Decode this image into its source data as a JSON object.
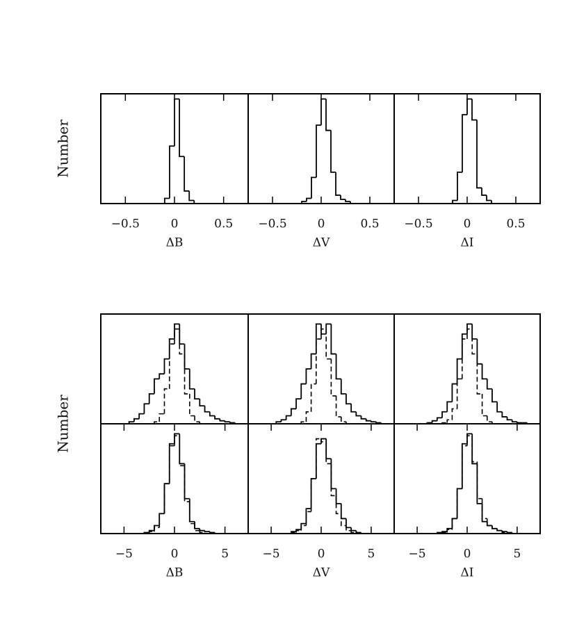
{
  "chart_data": [
    {
      "type": "histogram",
      "xlabel": "ΔB",
      "ylabel": "Number",
      "bins": [
        -0.75,
        -0.7,
        -0.65,
        -0.6,
        -0.55,
        -0.5,
        -0.45,
        -0.4,
        -0.35,
        -0.3,
        -0.25,
        -0.2,
        -0.15,
        -0.1,
        -0.05,
        0,
        0.05,
        0.1,
        0.15,
        0.2,
        0.25,
        0.3,
        0.35,
        0.4,
        0.45,
        0.5,
        0.55,
        0.6,
        0.65,
        0.7,
        0.75
      ],
      "series": [
        {
          "color": "#000000",
          "dashed": false,
          "values": [
            0,
            0,
            0,
            0,
            0,
            0,
            0,
            0,
            0,
            0,
            0,
            0,
            0,
            0.05,
            0.55,
            1.0,
            0.45,
            0.12,
            0.03,
            0,
            0,
            0,
            0,
            0,
            0,
            0,
            0,
            0,
            0,
            0
          ]
        }
      ],
      "xlim": [
        -0.75,
        0.75
      ],
      "ylim": [
        0,
        1.05
      ],
      "xticks": [
        {
          "value": -0.5,
          "label": "−0.5"
        },
        0,
        0.5
      ]
    },
    {
      "type": "histogram",
      "xlabel": "ΔV",
      "bins": [
        -0.75,
        -0.7,
        -0.65,
        -0.6,
        -0.55,
        -0.5,
        -0.45,
        -0.4,
        -0.35,
        -0.3,
        -0.25,
        -0.2,
        -0.15,
        -0.1,
        -0.05,
        0,
        0.05,
        0.1,
        0.15,
        0.2,
        0.25,
        0.3,
        0.35,
        0.4,
        0.45,
        0.5,
        0.55,
        0.6,
        0.65,
        0.7,
        0.75
      ],
      "series": [
        {
          "color": "#000000",
          "dashed": false,
          "values": [
            0,
            0,
            0,
            0,
            0,
            0,
            0,
            0,
            0,
            0,
            0,
            0.02,
            0.05,
            0.25,
            0.75,
            1.0,
            0.7,
            0.3,
            0.08,
            0.04,
            0.02,
            0,
            0,
            0,
            0,
            0,
            0,
            0,
            0,
            0
          ]
        }
      ],
      "xlim": [
        -0.75,
        0.75
      ],
      "ylim": [
        0,
        1.05
      ],
      "xticks": [
        {
          "value": -0.5,
          "label": "−0.5"
        },
        0,
        0.5
      ]
    },
    {
      "type": "histogram",
      "xlabel": "ΔI",
      "bins": [
        -0.75,
        -0.7,
        -0.65,
        -0.6,
        -0.55,
        -0.5,
        -0.45,
        -0.4,
        -0.35,
        -0.3,
        -0.25,
        -0.2,
        -0.15,
        -0.1,
        -0.05,
        0,
        0.05,
        0.1,
        0.15,
        0.2,
        0.25,
        0.3,
        0.35,
        0.4,
        0.45,
        0.5,
        0.55,
        0.6,
        0.65,
        0.7,
        0.75
      ],
      "series": [
        {
          "color": "#000000",
          "dashed": false,
          "values": [
            0,
            0,
            0,
            0,
            0,
            0,
            0,
            0,
            0,
            0,
            0,
            0,
            0.03,
            0.3,
            0.85,
            1.0,
            0.8,
            0.15,
            0.08,
            0.03,
            0,
            0,
            0,
            0,
            0,
            0,
            0,
            0,
            0,
            0
          ]
        }
      ],
      "xlim": [
        -0.75,
        0.75
      ],
      "ylim": [
        0,
        1.05
      ],
      "xticks": [
        {
          "value": -0.5,
          "label": "−0.5"
        },
        0,
        0.5
      ]
    },
    {
      "type": "histogram",
      "ylabel": "Number",
      "bins": [
        -7,
        -6.5,
        -6,
        -5.5,
        -5,
        -4.5,
        -4,
        -3.5,
        -3,
        -2.5,
        -2,
        -1.5,
        -1,
        -0.5,
        0,
        0.5,
        1,
        1.5,
        2,
        2.5,
        3,
        3.5,
        4,
        4.5,
        5,
        5.5,
        6,
        6.5,
        7
      ],
      "series": [
        {
          "color": "#000000",
          "dashed": false,
          "values": [
            0,
            0,
            0,
            0,
            0,
            0.02,
            0.05,
            0.1,
            0.2,
            0.3,
            0.45,
            0.5,
            0.65,
            0.85,
            1.0,
            0.8,
            0.55,
            0.35,
            0.25,
            0.18,
            0.12,
            0.08,
            0.05,
            0.03,
            0.02,
            0.01,
            0,
            0
          ]
        },
        {
          "color": "#000000",
          "dashed": true,
          "values": [
            0,
            0,
            0,
            0,
            0,
            0,
            0,
            0,
            0,
            0,
            0.02,
            0.1,
            0.35,
            0.8,
            0.95,
            0.7,
            0.3,
            0.08,
            0.02,
            0,
            0,
            0,
            0,
            0,
            0,
            0,
            0,
            0
          ]
        }
      ],
      "xlim": [
        -7.3,
        7.3
      ],
      "ylim": [
        0,
        1.1
      ]
    },
    {
      "type": "histogram",
      "bins": [
        -7,
        -6.5,
        -6,
        -5.5,
        -5,
        -4.5,
        -4,
        -3.5,
        -3,
        -2.5,
        -2,
        -1.5,
        -1,
        -0.5,
        0,
        0.5,
        1,
        1.5,
        2,
        2.5,
        3,
        3.5,
        4,
        4.5,
        5,
        5.5,
        6,
        6.5,
        7
      ],
      "series": [
        {
          "color": "#000000",
          "dashed": false,
          "values": [
            0,
            0,
            0,
            0,
            0,
            0.02,
            0.04,
            0.08,
            0.15,
            0.25,
            0.4,
            0.55,
            0.7,
            1.0,
            0.9,
            1.0,
            0.7,
            0.45,
            0.3,
            0.2,
            0.12,
            0.08,
            0.05,
            0.03,
            0.02,
            0.01,
            0,
            0
          ]
        },
        {
          "color": "#000000",
          "dashed": true,
          "values": [
            0,
            0,
            0,
            0,
            0,
            0,
            0,
            0,
            0,
            0,
            0.02,
            0.12,
            0.4,
            0.85,
            0.95,
            0.65,
            0.28,
            0.07,
            0.02,
            0,
            0,
            0,
            0,
            0,
            0,
            0,
            0,
            0
          ]
        }
      ],
      "xlim": [
        -7.3,
        7.3
      ],
      "ylim": [
        0,
        1.1
      ]
    },
    {
      "type": "histogram",
      "bins": [
        -7,
        -6.5,
        -6,
        -5.5,
        -5,
        -4.5,
        -4,
        -3.5,
        -3,
        -2.5,
        -2,
        -1.5,
        -1,
        -0.5,
        0,
        0.5,
        1,
        1.5,
        2,
        2.5,
        3,
        3.5,
        4,
        4.5,
        5,
        5.5,
        6,
        6.5,
        7
      ],
      "series": [
        {
          "color": "#000000",
          "dashed": false,
          "values": [
            0,
            0,
            0,
            0,
            0,
            0,
            0.01,
            0.03,
            0.06,
            0.12,
            0.22,
            0.4,
            0.65,
            0.9,
            1.0,
            0.85,
            0.6,
            0.45,
            0.35,
            0.22,
            0.12,
            0.07,
            0.04,
            0.02,
            0.01,
            0.01,
            0,
            0
          ]
        },
        {
          "color": "#000000",
          "dashed": true,
          "values": [
            0,
            0,
            0,
            0,
            0,
            0,
            0,
            0,
            0,
            0.01,
            0.04,
            0.15,
            0.45,
            0.85,
            0.95,
            0.7,
            0.3,
            0.08,
            0.02,
            0,
            0,
            0,
            0,
            0,
            0,
            0,
            0,
            0
          ]
        }
      ],
      "xlim": [
        -7.3,
        7.3
      ],
      "ylim": [
        0,
        1.1
      ]
    },
    {
      "type": "histogram",
      "xlabel": "ΔB",
      "bins": [
        -7,
        -6.5,
        -6,
        -5.5,
        -5,
        -4.5,
        -4,
        -3.5,
        -3,
        -2.5,
        -2,
        -1.5,
        -1,
        -0.5,
        0,
        0.5,
        1,
        1.5,
        2,
        2.5,
        3,
        3.5,
        4,
        4.5,
        5,
        5.5,
        6,
        6.5,
        7
      ],
      "series": [
        {
          "color": "#000000",
          "dashed": false,
          "values": [
            0,
            0,
            0,
            0,
            0,
            0,
            0,
            0,
            0.01,
            0.03,
            0.08,
            0.2,
            0.5,
            0.9,
            1.0,
            0.7,
            0.35,
            0.12,
            0.05,
            0.03,
            0.02,
            0.01,
            0,
            0,
            0,
            0,
            0,
            0
          ]
        },
        {
          "color": "#000000",
          "dashed": true,
          "values": [
            0,
            0,
            0,
            0,
            0,
            0,
            0,
            0,
            0,
            0.02,
            0.06,
            0.2,
            0.5,
            0.88,
            0.98,
            0.68,
            0.32,
            0.1,
            0.03,
            0.01,
            0,
            0,
            0,
            0,
            0,
            0,
            0,
            0
          ]
        }
      ],
      "xlim": [
        -7.3,
        7.3
      ],
      "ylim": [
        0,
        1.1
      ],
      "xticks": [
        {
          "value": -5,
          "label": "−5"
        },
        0,
        5
      ]
    },
    {
      "type": "histogram",
      "xlabel": "ΔV",
      "bins": [
        -7,
        -6.5,
        -6,
        -5.5,
        -5,
        -4.5,
        -4,
        -3.5,
        -3,
        -2.5,
        -2,
        -1.5,
        -1,
        -0.5,
        0,
        0.5,
        1,
        1.5,
        2,
        2.5,
        3,
        3.5,
        4,
        4.5,
        5,
        5.5,
        6,
        6.5,
        7
      ],
      "series": [
        {
          "color": "#000000",
          "dashed": false,
          "values": [
            0,
            0,
            0,
            0,
            0,
            0,
            0,
            0,
            0.02,
            0.04,
            0.1,
            0.25,
            0.55,
            0.9,
            0.95,
            0.75,
            0.45,
            0.3,
            0.15,
            0.06,
            0.03,
            0.01,
            0,
            0,
            0,
            0,
            0,
            0
          ]
        },
        {
          "color": "#000000",
          "dashed": true,
          "values": [
            0,
            0,
            0,
            0,
            0,
            0,
            0,
            0,
            0.01,
            0.03,
            0.08,
            0.22,
            0.55,
            0.95,
            0.92,
            0.7,
            0.38,
            0.2,
            0.08,
            0.03,
            0.01,
            0,
            0,
            0,
            0,
            0,
            0,
            0
          ]
        }
      ],
      "xlim": [
        -7.3,
        7.3
      ],
      "ylim": [
        0,
        1.1
      ],
      "xticks": [
        {
          "value": -5,
          "label": "−5"
        },
        0,
        5
      ]
    },
    {
      "type": "histogram",
      "xlabel": "ΔI",
      "bins": [
        -7,
        -6.5,
        -6,
        -5.5,
        -5,
        -4.5,
        -4,
        -3.5,
        -3,
        -2.5,
        -2,
        -1.5,
        -1,
        -0.5,
        0,
        0.5,
        1,
        1.5,
        2,
        2.5,
        3,
        3.5,
        4,
        4.5,
        5,
        5.5,
        6,
        6.5,
        7
      ],
      "series": [
        {
          "color": "#000000",
          "dashed": false,
          "values": [
            0,
            0,
            0,
            0,
            0,
            0,
            0,
            0,
            0.01,
            0.02,
            0.05,
            0.15,
            0.45,
            0.9,
            1.0,
            0.7,
            0.3,
            0.12,
            0.08,
            0.05,
            0.03,
            0.02,
            0.01,
            0,
            0,
            0,
            0,
            0
          ]
        },
        {
          "color": "#000000",
          "dashed": true,
          "values": [
            0,
            0,
            0,
            0,
            0,
            0,
            0,
            0,
            0,
            0.01,
            0.04,
            0.15,
            0.45,
            0.88,
            0.98,
            0.72,
            0.35,
            0.15,
            0.08,
            0.05,
            0.03,
            0.01,
            0,
            0,
            0,
            0,
            0,
            0
          ]
        }
      ],
      "xlim": [
        -7.3,
        7.3
      ],
      "ylim": [
        0,
        1.1
      ],
      "xticks": [
        {
          "value": -5,
          "label": "−5"
        },
        0,
        5
      ]
    }
  ]
}
